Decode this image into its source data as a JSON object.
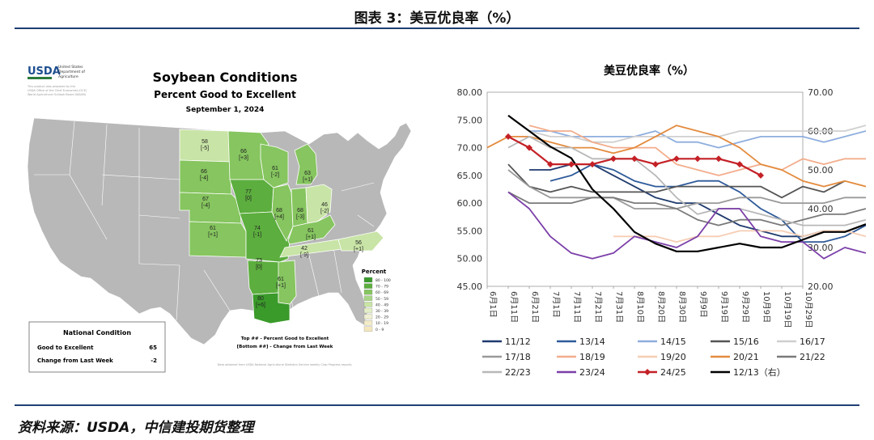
{
  "header": {
    "title": "图表 3：美豆优良率（%）"
  },
  "footer": {
    "source": "资料来源：USDA，中信建投期货整理"
  },
  "map": {
    "usda_logo": "USDA",
    "usda_org": [
      "United States",
      "Department of",
      "Agriculture"
    ],
    "usda_fine": [
      "This product was prepared by the",
      "USDA Office of the Chief Economist (OCE)",
      "World Agricultural Outlook Board (WAOB)"
    ],
    "title": "Soybean Conditions",
    "subtitle": "Percent Good to Excellent",
    "date": "September 1, 2024",
    "states": [
      {
        "id": "ND",
        "top": "58",
        "bottom": "[-5]"
      },
      {
        "id": "MN",
        "top": "66",
        "bottom": "[+3]"
      },
      {
        "id": "WI",
        "top": "61",
        "bottom": "[-2]"
      },
      {
        "id": "MI",
        "top": "63",
        "bottom": "[+1]"
      },
      {
        "id": "SD",
        "top": "66",
        "bottom": "[-4]"
      },
      {
        "id": "NE",
        "top": "67",
        "bottom": "[-4]"
      },
      {
        "id": "IA",
        "top": "77",
        "bottom": "[0]"
      },
      {
        "id": "IL",
        "top": "68",
        "bottom": "[+4]"
      },
      {
        "id": "IN",
        "top": "68",
        "bottom": "[-3]"
      },
      {
        "id": "OH",
        "top": "46",
        "bottom": "[-2]"
      },
      {
        "id": "KS",
        "top": "61",
        "bottom": "[+1]"
      },
      {
        "id": "MO",
        "top": "74",
        "bottom": "[-1]"
      },
      {
        "id": "KY",
        "top": "61",
        "bottom": "[+1]"
      },
      {
        "id": "TN",
        "top": "42",
        "bottom": "[-9]"
      },
      {
        "id": "NC",
        "top": "56",
        "bottom": "[+1]"
      },
      {
        "id": "AR",
        "top": "73",
        "bottom": "[0]"
      },
      {
        "id": "MS",
        "top": "61",
        "bottom": "[+1]"
      },
      {
        "id": "LA",
        "top": "80",
        "bottom": "[+6]"
      }
    ],
    "legend_title": "Percent",
    "legend": [
      {
        "label": "80 - 100",
        "color": "#3a9a2a"
      },
      {
        "label": "70 - 79",
        "color": "#5cae3e"
      },
      {
        "label": "60 - 69",
        "color": "#86c55f"
      },
      {
        "label": "50 - 59",
        "color": "#a8d585"
      },
      {
        "label": "40 - 49",
        "color": "#c8e4a6"
      },
      {
        "label": "30 - 39",
        "color": "#e2eec6"
      },
      {
        "label": "20 - 29",
        "color": "#efefd2"
      },
      {
        "label": "10 - 19",
        "color": "#f3ecc8"
      },
      {
        "label": "0 - 9",
        "color": "#f5e7bd"
      }
    ],
    "note_top": "Top ## - Percent Good to Excellent",
    "note_bottom": "[Bottom ##] - Change from Last Week",
    "national_title": "National Condition",
    "national_rows": [
      {
        "label": "Good to Excellent",
        "value": "65"
      },
      {
        "label": "Change from Last Week",
        "value": "-2"
      }
    ],
    "data_note": "Data obtained from USDA National Agricultural Statistics Service weekly Crop Progress reports."
  },
  "chart_data": {
    "type": "line",
    "title": "美豆优良率（%）",
    "x_tick_labels": [
      "6月1日",
      "6月11日",
      "6月21日",
      "7月1日",
      "7月11日",
      "7月21日",
      "7月31日",
      "8月10日",
      "8月20日",
      "8月30日",
      "9月9日",
      "9月19日",
      "9月29日",
      "10月9日",
      "10月19日",
      "10月29日"
    ],
    "ylim_left": [
      45,
      80
    ],
    "yticks_left": [
      "45.00",
      "50.00",
      "55.00",
      "60.00",
      "65.00",
      "70.00",
      "75.00",
      "80.00"
    ],
    "ylim_right": [
      20,
      70
    ],
    "yticks_right": [
      "20.00",
      "30.00",
      "40.00",
      "50.00",
      "60.00",
      "70.00"
    ],
    "legend_placement": "bottom",
    "series": [
      {
        "name": "11/12",
        "color": "#1f3a6e",
        "axis": "left",
        "marker": "none",
        "x": [
          3,
          4,
          5,
          6,
          7,
          8,
          9,
          10,
          11,
          12,
          13,
          14,
          15,
          16,
          17
        ],
        "y": [
          66,
          66,
          67,
          67,
          65,
          63,
          61,
          60,
          60,
          58,
          56,
          55,
          54,
          54,
          55
        ]
      },
      {
        "name": "13/14",
        "color": "#2e5a9a",
        "axis": "left",
        "marker": "none",
        "x": [
          4,
          5,
          6,
          7,
          8,
          9,
          10,
          11,
          12,
          13,
          14,
          15,
          16,
          17,
          18,
          19,
          20
        ],
        "y": [
          64,
          65,
          67,
          66,
          64,
          63,
          63,
          64,
          64,
          62,
          59,
          57,
          53,
          53,
          54,
          56,
          57
        ]
      },
      {
        "name": "14/15",
        "color": "#8eaede",
        "axis": "left",
        "marker": "none",
        "x": [
          3,
          4,
          5,
          6,
          7,
          8,
          9,
          10,
          11,
          12,
          13,
          14,
          15,
          16,
          17,
          18,
          19,
          20
        ],
        "y": [
          73,
          73,
          72,
          72,
          72,
          72,
          73,
          71,
          71,
          70,
          71,
          72,
          72,
          72,
          71,
          72,
          73,
          73
        ]
      },
      {
        "name": "15/16",
        "color": "#555555",
        "axis": "left",
        "marker": "none",
        "x": [
          2,
          3,
          4,
          5,
          6,
          7,
          8,
          9,
          10,
          11,
          12,
          13,
          14,
          15,
          16,
          17,
          18
        ],
        "y": [
          67,
          63,
          62,
          63,
          62,
          62,
          62,
          62,
          63,
          63,
          63,
          63,
          63,
          61,
          63,
          62,
          64
        ]
      },
      {
        "name": "16/17",
        "color": "#cfcfcf",
        "axis": "left",
        "marker": "none",
        "x": [
          3,
          4,
          5,
          6,
          7,
          8,
          9,
          10,
          11,
          12,
          13,
          14,
          15,
          16,
          17,
          18,
          19,
          20
        ],
        "y": [
          73,
          72,
          72,
          71,
          71,
          72,
          72,
          72,
          72,
          72,
          73,
          73,
          73,
          73,
          73,
          73,
          74,
          74
        ]
      },
      {
        "name": "17/18",
        "color": "#999999",
        "axis": "left",
        "marker": "none",
        "x": [
          2,
          3,
          4,
          5,
          6,
          7,
          8,
          9,
          10,
          11,
          12,
          13,
          14,
          15,
          16,
          17,
          18,
          19
        ],
        "y": [
          66,
          63,
          61,
          61,
          61,
          61,
          59,
          59,
          59,
          60,
          60,
          61,
          61,
          60,
          60,
          60,
          61,
          61
        ]
      },
      {
        "name": "18/19",
        "color": "#f2ad8c",
        "axis": "left",
        "marker": "none",
        "x": [
          3,
          4,
          5,
          6,
          7,
          8,
          9,
          10,
          11,
          12,
          13,
          14,
          15,
          16,
          17,
          18,
          19,
          20
        ],
        "y": [
          74,
          73,
          73,
          71,
          70,
          70,
          70,
          67,
          66,
          65,
          66,
          67,
          66,
          68,
          67,
          68,
          68,
          68
        ]
      },
      {
        "name": "19/20",
        "color": "#f6cdb3",
        "axis": "left",
        "marker": "none",
        "x": [
          7,
          8,
          9,
          10,
          11,
          12,
          13,
          14,
          15,
          16,
          17,
          18,
          19,
          20
        ],
        "y": [
          54,
          54,
          54,
          53,
          54,
          54,
          55,
          55,
          55,
          54,
          55,
          55,
          54,
          54
        ]
      },
      {
        "name": "20/21",
        "color": "#e38b3e",
        "axis": "left",
        "marker": "none",
        "x": [
          1,
          2,
          3,
          4,
          5,
          6,
          7,
          8,
          9,
          10,
          11,
          12,
          13,
          14,
          15,
          16,
          17,
          18,
          19
        ],
        "y": [
          70,
          72,
          72,
          71,
          70,
          70,
          69,
          70,
          72,
          74,
          73,
          72,
          70,
          67,
          66,
          64,
          63,
          64,
          63
        ]
      },
      {
        "name": "21/22",
        "color": "#7a7a7a",
        "axis": "left",
        "marker": "none",
        "x": [
          2,
          3,
          4,
          5,
          6,
          7,
          8,
          9,
          10,
          11,
          12,
          13,
          14,
          15,
          16,
          17,
          18,
          19
        ],
        "y": [
          62,
          60,
          60,
          60,
          61,
          61,
          60,
          60,
          59,
          57,
          56,
          57,
          57,
          56,
          57,
          58,
          58,
          59
        ]
      },
      {
        "name": "22/23",
        "color": "#b8b8b8",
        "axis": "left",
        "marker": "none",
        "x": [
          2,
          3,
          4,
          5,
          6,
          7,
          8,
          9,
          10,
          11,
          12,
          13,
          14,
          15,
          16,
          17,
          18,
          19
        ],
        "y": [
          70,
          72,
          70,
          70,
          68,
          68,
          68,
          65,
          61,
          58,
          59,
          59,
          58,
          57,
          56,
          56,
          56,
          57
        ]
      },
      {
        "name": "23/24",
        "color": "#7b3fa8",
        "axis": "left",
        "marker": "none",
        "x": [
          2,
          3,
          4,
          5,
          6,
          7,
          8,
          9,
          10,
          11,
          12,
          13,
          14,
          15,
          16,
          17,
          18,
          19
        ],
        "y": [
          62,
          59,
          54,
          51,
          50,
          51,
          54,
          53,
          52,
          54,
          59,
          59,
          54,
          53,
          53,
          50,
          52,
          51
        ]
      },
      {
        "name": "24/25",
        "color": "#c42127",
        "axis": "left",
        "marker": "diamond",
        "x": [
          2,
          3,
          4,
          5,
          6,
          7,
          8,
          9,
          10,
          11,
          12,
          13,
          14
        ],
        "y": [
          72,
          70,
          67,
          67,
          67,
          68,
          68,
          67,
          68,
          68,
          68,
          67,
          65
        ]
      },
      {
        "name": "12/13（右）",
        "color": "#000000",
        "axis": "right",
        "marker": "none",
        "x": [
          2,
          3,
          4,
          5,
          6,
          7,
          8,
          9,
          10,
          11,
          12,
          13,
          14,
          15,
          16,
          17,
          18,
          19
        ],
        "y": [
          64,
          60,
          56,
          53,
          45,
          40,
          34,
          31,
          29,
          29,
          30,
          31,
          30,
          30,
          32,
          34,
          34,
          36
        ]
      }
    ]
  }
}
